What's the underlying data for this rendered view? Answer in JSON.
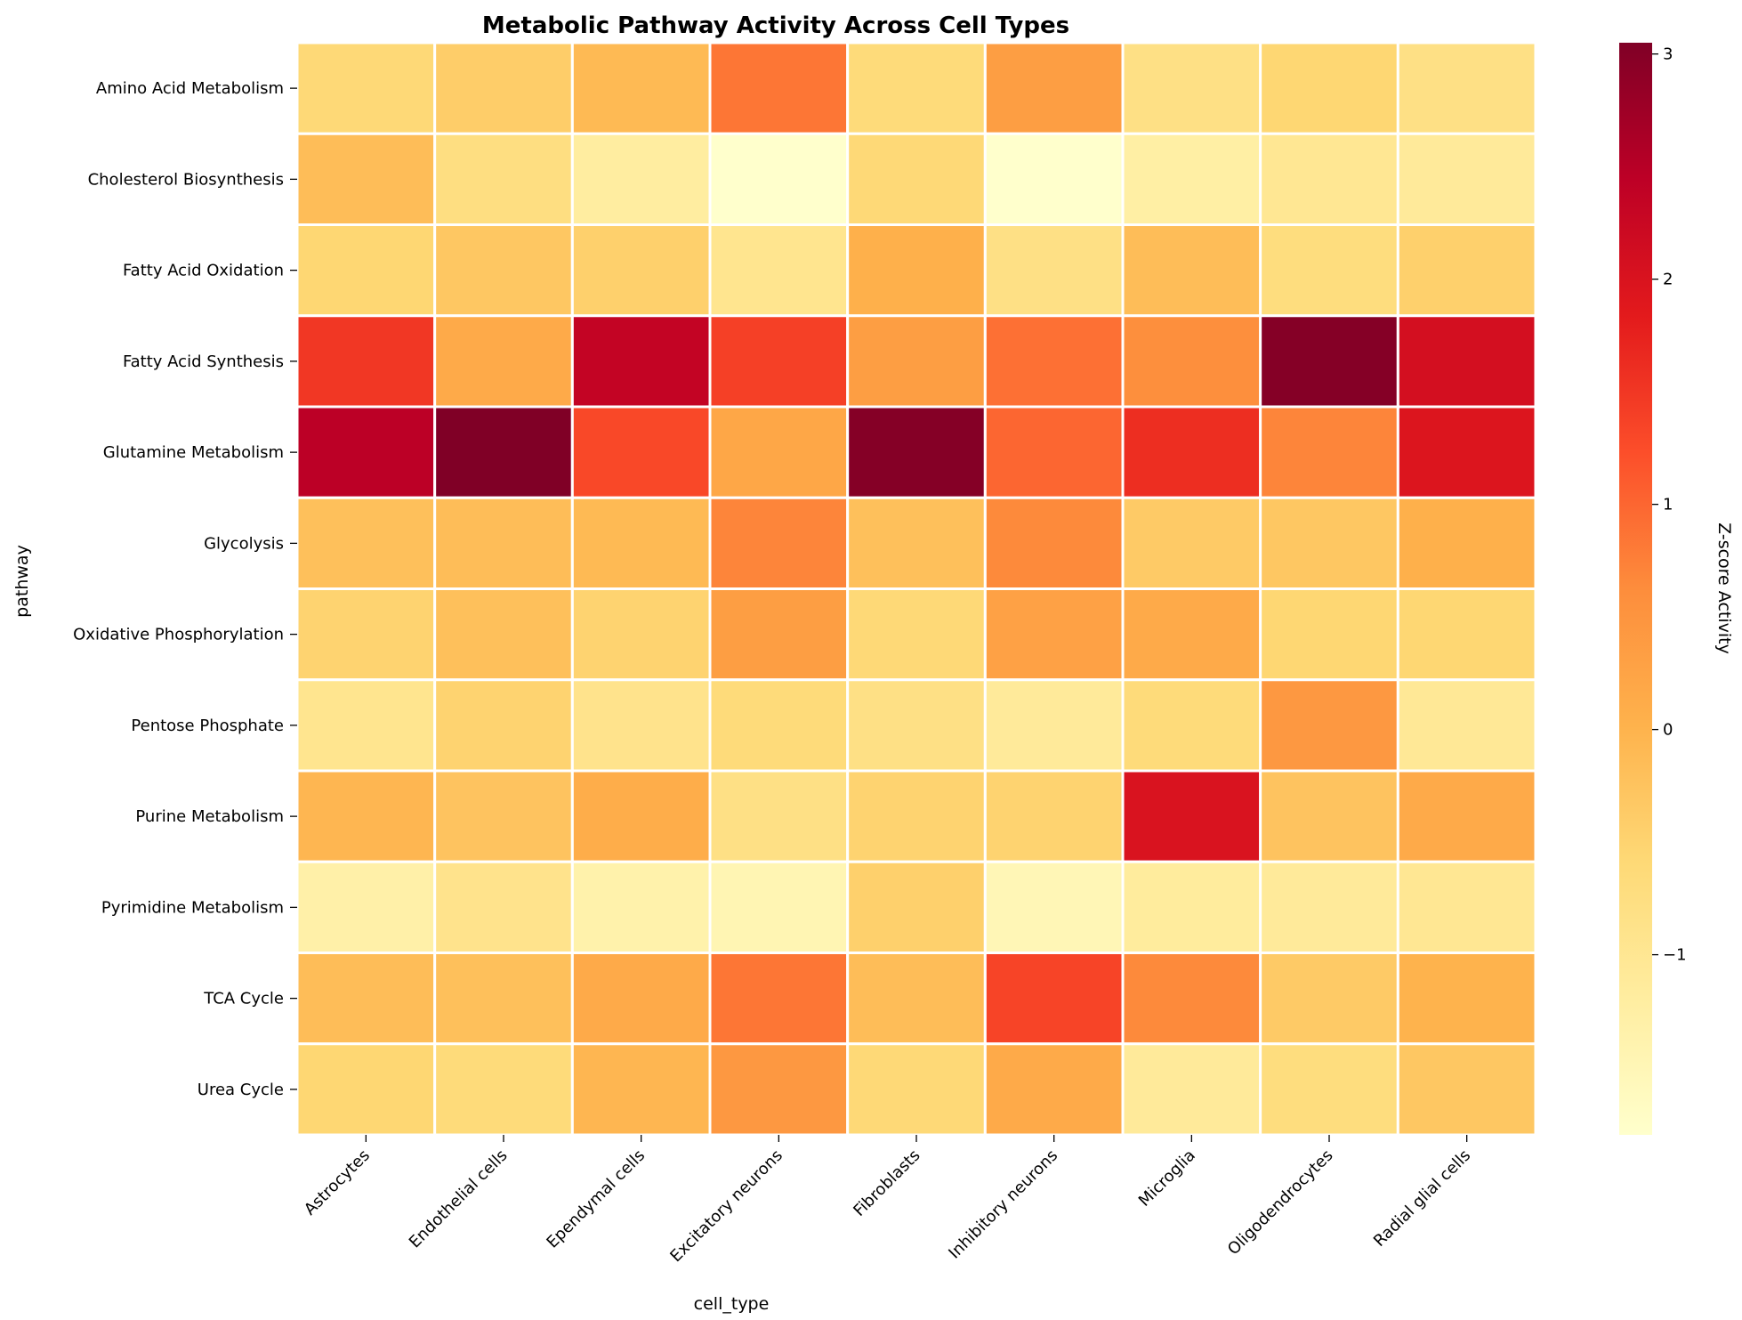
{
  "chart_data": {
    "type": "heatmap",
    "title": "Metabolic Pathway Activity Across Cell Types",
    "xlabel": "cell_type",
    "ylabel": "pathway",
    "colorbar_label": "Z-score Activity",
    "colormap": "YlOrRd",
    "color_range": [
      -1.8,
      3.05
    ],
    "colorbar_ticks": [
      {
        "value": -1,
        "label": "−1"
      },
      {
        "value": 0,
        "label": "0"
      },
      {
        "value": 1,
        "label": "1"
      },
      {
        "value": 2,
        "label": "2"
      },
      {
        "value": 3,
        "label": "3"
      }
    ],
    "x_categories": [
      "Astrocytes",
      "Endothelial cells",
      "Ependymal cells",
      "Excitatory neurons",
      "Fibroblasts",
      "Inhibitory neurons",
      "Microglia",
      "Oligodendrocytes",
      "Radial glial cells"
    ],
    "y_categories": [
      "Amino Acid Metabolism",
      "Cholesterol Biosynthesis",
      "Fatty Acid Oxidation",
      "Fatty Acid Synthesis",
      "Glutamine Metabolism",
      "Glycolysis",
      "Oxidative Phosphorylation",
      "Pentose Phosphate",
      "Purine Metabolism",
      "Pyrimidine Metabolism",
      "TCA Cycle",
      "Urea Cycle"
    ],
    "values": [
      [
        -0.6,
        -0.4,
        -0.1,
        0.85,
        -0.65,
        0.35,
        -0.8,
        -0.55,
        -0.8
      ],
      [
        -0.15,
        -0.75,
        -1.2,
        -1.8,
        -0.6,
        -1.8,
        -1.25,
        -1.0,
        -1.1
      ],
      [
        -0.55,
        -0.3,
        -0.45,
        -0.95,
        0.05,
        -0.8,
        -0.15,
        -0.7,
        -0.45
      ],
      [
        1.5,
        0.15,
        2.35,
        1.4,
        0.35,
        0.9,
        0.6,
        3.0,
        2.1
      ],
      [
        2.45,
        3.05,
        1.3,
        0.2,
        3.0,
        1.0,
        1.6,
        0.7,
        1.95
      ],
      [
        -0.2,
        -0.15,
        -0.1,
        0.7,
        -0.2,
        0.65,
        -0.35,
        -0.3,
        0.05
      ],
      [
        -0.5,
        -0.2,
        -0.5,
        0.35,
        -0.6,
        0.3,
        0.15,
        -0.55,
        -0.55
      ],
      [
        -0.95,
        -0.5,
        -0.9,
        -0.65,
        -0.8,
        -1.1,
        -0.65,
        0.45,
        -1.05
      ],
      [
        -0.05,
        -0.25,
        0.1,
        -0.8,
        -0.5,
        -0.5,
        2.0,
        -0.25,
        0.15
      ],
      [
        -1.3,
        -0.9,
        -1.35,
        -1.45,
        -0.45,
        -1.5,
        -1.15,
        -1.1,
        -1.0
      ],
      [
        -0.15,
        -0.2,
        0.15,
        0.85,
        -0.15,
        1.35,
        0.65,
        -0.35,
        0.0
      ],
      [
        -0.55,
        -0.65,
        -0.05,
        0.45,
        -0.6,
        0.15,
        -1.1,
        -0.7,
        -0.3
      ]
    ]
  }
}
